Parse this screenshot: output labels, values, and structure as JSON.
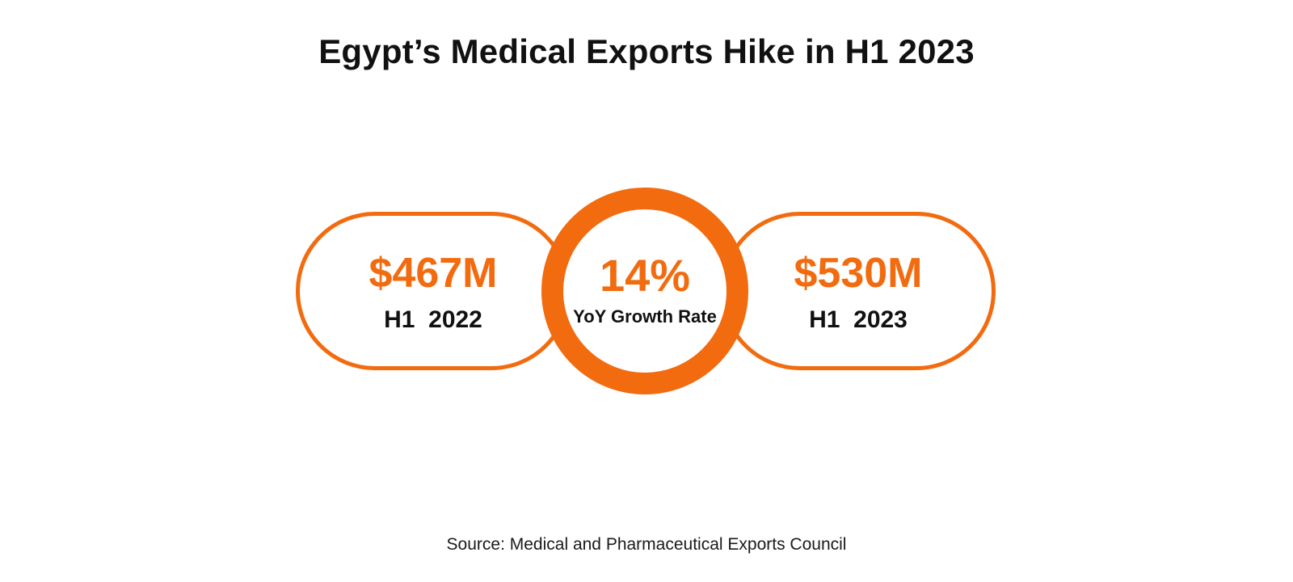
{
  "title": "Egypt’s Medical Exports Hike in H1 2023",
  "colors": {
    "accent": "#f26b0f",
    "text": "#111111",
    "background": "#ffffff"
  },
  "stats": {
    "left": {
      "value": "$467M",
      "label": "H1  2022"
    },
    "center": {
      "value": "14%",
      "label": "YoY Growth Rate"
    },
    "right": {
      "value": "$530M",
      "label": "H1  2023"
    }
  },
  "source": "Source: Medical and Pharmaceutical Exports Council"
}
